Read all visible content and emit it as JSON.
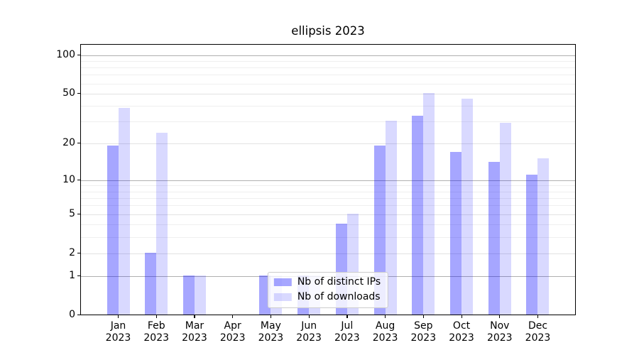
{
  "title": "ellipsis 2023",
  "axes": {
    "y_tick_labels": [
      "100",
      "50",
      "20",
      "10",
      "5",
      "2",
      "1",
      "0"
    ],
    "x_tick_labels": [
      [
        "Jan",
        "2023"
      ],
      [
        "Feb",
        "2023"
      ],
      [
        "Mar",
        "2023"
      ],
      [
        "Apr",
        "2023"
      ],
      [
        "May",
        "2023"
      ],
      [
        "Jun",
        "2023"
      ],
      [
        "Jul",
        "2023"
      ],
      [
        "Aug",
        "2023"
      ],
      [
        "Sep",
        "2023"
      ],
      [
        "Oct",
        "2023"
      ],
      [
        "Nov",
        "2023"
      ],
      [
        "Dec",
        "2023"
      ]
    ]
  },
  "legend": {
    "items": [
      "Nb of distinct IPs",
      "Nb of downloads"
    ]
  },
  "colors": {
    "bar_base": "#0000FF",
    "distinct_ips_effective": "#A9A9F1",
    "downloads_effective": "#DBDBF8",
    "decade_gridline": "#B0B0B0",
    "mid_gridline": "#E2E2E2",
    "minor_gridline": "#EFEFEF",
    "axis": "#000000",
    "background": "#FFFFFF",
    "legend_border": "#CCCCCC"
  },
  "chart_data": {
    "type": "bar",
    "title": "ellipsis 2023",
    "categories": [
      "Jan 2023",
      "Feb 2023",
      "Mar 2023",
      "Apr 2023",
      "May 2023",
      "Jun 2023",
      "Jul 2023",
      "Aug 2023",
      "Sep 2023",
      "Oct 2023",
      "Nov 2023",
      "Dec 2023"
    ],
    "series": [
      {
        "name": "Nb of distinct IPs",
        "color_rgba": "rgba(0,0,255,0.35)",
        "values": [
          19,
          2,
          1,
          0,
          1,
          1,
          4,
          19,
          33,
          17,
          14,
          11
        ]
      },
      {
        "name": "Nb of downloads",
        "color_rgba": "rgba(0,0,255,0.15)",
        "values": [
          38,
          24,
          1,
          0,
          1,
          1,
          5,
          30,
          50,
          45,
          29,
          15
        ]
      }
    ],
    "xlabel": "",
    "ylabel": "",
    "yscale": "log1p",
    "ylim": [
      0,
      121
    ],
    "y_major_ticks": [
      0,
      1,
      2,
      5,
      10,
      20,
      50,
      100
    ],
    "gridlines": {
      "decade": [
        1,
        10,
        100
      ],
      "mid": [
        2,
        5,
        20,
        50
      ],
      "minor": [
        3,
        4,
        6,
        7,
        8,
        9,
        30,
        40,
        60,
        70,
        80,
        90
      ]
    },
    "grid": true,
    "legend_position": "lower center"
  }
}
